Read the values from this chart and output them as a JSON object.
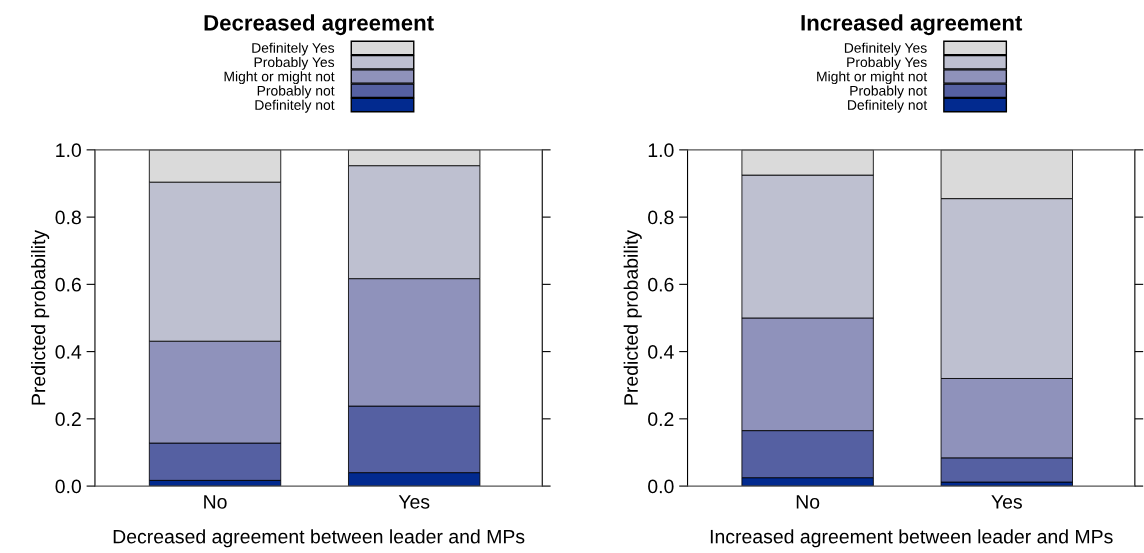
{
  "chart_data": [
    {
      "type": "bar",
      "stacked": true,
      "title": "Decreased agreement",
      "xlabel": "Decreased agreement between leader and MPs",
      "ylabel": "Predicted probability",
      "categories": [
        "No",
        "Yes"
      ],
      "ylim": [
        0,
        1
      ],
      "yticks": [
        {
          "value": 0,
          "label": "0.0"
        },
        {
          "value": 0.2,
          "label": "0.2"
        },
        {
          "value": 0.4,
          "label": "0.4"
        },
        {
          "value": 0.6,
          "label": "0.6"
        },
        {
          "value": 0.8,
          "label": "0.8"
        },
        {
          "value": 1,
          "label": "1.0"
        }
      ],
      "legend": "top",
      "grid": false,
      "series": [
        {
          "name": "Definitely not",
          "color": "#022a8f",
          "values": [
            0.017,
            0.04
          ]
        },
        {
          "name": "Probably not",
          "color": "#5560a2",
          "values": [
            0.111,
            0.198
          ]
        },
        {
          "name": "Might or might not",
          "color": "#8f92bb",
          "values": [
            0.303,
            0.379
          ]
        },
        {
          "name": "Probably Yes",
          "color": "#bec0d0",
          "values": [
            0.473,
            0.336
          ]
        },
        {
          "name": "Definitely Yes",
          "color": "#dadada",
          "values": [
            0.096,
            0.047
          ]
        }
      ]
    },
    {
      "type": "bar",
      "stacked": true,
      "title": "Increased agreement",
      "xlabel": "Increased agreement between leader and MPs",
      "ylabel": "Predicted probability",
      "categories": [
        "No",
        "Yes"
      ],
      "ylim": [
        0,
        1
      ],
      "yticks": [
        {
          "value": 0,
          "label": "0.0"
        },
        {
          "value": 0.2,
          "label": "0.2"
        },
        {
          "value": 0.4,
          "label": "0.4"
        },
        {
          "value": 0.6,
          "label": "0.6"
        },
        {
          "value": 0.8,
          "label": "0.8"
        },
        {
          "value": 1,
          "label": "1.0"
        }
      ],
      "legend": "top",
      "grid": false,
      "series": [
        {
          "name": "Definitely not",
          "color": "#022a8f",
          "values": [
            0.025,
            0.012
          ]
        },
        {
          "name": "Probably not",
          "color": "#5560a2",
          "values": [
            0.14,
            0.072
          ]
        },
        {
          "name": "Might or might not",
          "color": "#8f92bb",
          "values": [
            0.335,
            0.236
          ]
        },
        {
          "name": "Probably Yes",
          "color": "#bec0d0",
          "values": [
            0.425,
            0.535
          ]
        },
        {
          "name": "Definitely Yes",
          "color": "#dadada",
          "values": [
            0.075,
            0.145
          ]
        }
      ]
    }
  ]
}
